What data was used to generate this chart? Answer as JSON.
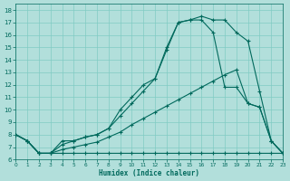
{
  "xlabel": "Humidex (Indice chaleur)",
  "background_color": "#b2dfdb",
  "grid_color": "#80cbc4",
  "line_color": "#00695c",
  "xlim": [
    0,
    23
  ],
  "ylim": [
    6,
    18.5
  ],
  "xticks": [
    0,
    1,
    2,
    3,
    4,
    5,
    6,
    7,
    8,
    9,
    10,
    11,
    12,
    13,
    14,
    15,
    16,
    17,
    18,
    19,
    20,
    21,
    22,
    23
  ],
  "yticks": [
    6,
    7,
    8,
    9,
    10,
    11,
    12,
    13,
    14,
    15,
    16,
    17,
    18
  ],
  "line1_x": [
    0,
    1,
    2,
    3,
    4,
    5,
    6,
    7,
    8,
    9,
    10,
    11,
    12,
    13,
    14,
    15,
    16,
    17,
    18,
    19,
    20,
    21,
    22,
    23
  ],
  "line1_y": [
    8.0,
    7.5,
    6.5,
    6.5,
    7.5,
    7.5,
    7.8,
    8.0,
    8.5,
    10.0,
    11.0,
    12.0,
    12.5,
    15.0,
    17.0,
    17.2,
    17.5,
    17.2,
    17.2,
    16.2,
    15.5,
    11.5,
    7.5,
    6.5
  ],
  "line2_x": [
    0,
    1,
    2,
    3,
    4,
    5,
    6,
    7,
    8,
    9,
    10,
    11,
    12,
    13,
    14,
    15,
    16,
    17,
    18,
    19,
    20,
    21,
    22,
    23
  ],
  "line2_y": [
    8.0,
    7.5,
    6.5,
    6.5,
    7.2,
    7.5,
    7.8,
    8.0,
    8.5,
    9.5,
    10.5,
    11.5,
    12.5,
    14.8,
    17.0,
    17.2,
    17.2,
    16.2,
    11.8,
    11.8,
    10.5,
    10.2,
    7.5,
    6.5
  ],
  "line3_x": [
    0,
    1,
    2,
    3,
    4,
    5,
    6,
    7,
    8,
    9,
    10,
    11,
    12,
    13,
    14,
    15,
    16,
    17,
    18,
    19,
    20,
    21,
    22,
    23
  ],
  "line3_y": [
    8.0,
    7.5,
    6.5,
    6.5,
    6.8,
    7.0,
    7.2,
    7.4,
    7.8,
    8.2,
    8.8,
    9.3,
    9.8,
    10.3,
    10.8,
    11.3,
    11.8,
    12.3,
    12.8,
    13.2,
    10.5,
    10.2,
    7.5,
    6.5
  ],
  "line4_x": [
    0,
    1,
    2,
    3,
    4,
    5,
    6,
    7,
    8,
    9,
    10,
    11,
    12,
    13,
    14,
    15,
    16,
    17,
    18,
    19,
    20,
    21,
    22,
    23
  ],
  "line4_y": [
    8.0,
    7.5,
    6.5,
    6.5,
    6.5,
    6.5,
    6.5,
    6.5,
    6.5,
    6.5,
    6.5,
    6.5,
    6.5,
    6.5,
    6.5,
    6.5,
    6.5,
    6.5,
    6.5,
    6.5,
    6.5,
    6.5,
    6.5,
    6.5
  ]
}
